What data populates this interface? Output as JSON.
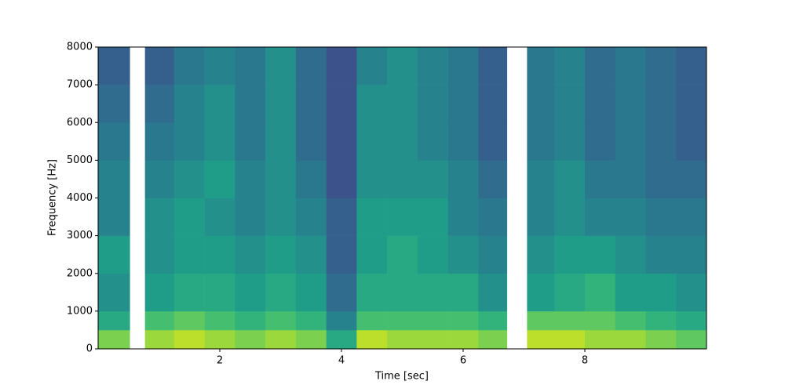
{
  "chart_data": {
    "type": "spectrogram",
    "xlabel": "Time [sec]",
    "ylabel": "Frequency [Hz]",
    "xlim": [
      0,
      10
    ],
    "ylim": [
      0,
      8000
    ],
    "xticks": [
      2,
      4,
      6,
      8
    ],
    "yticks": [
      0,
      1000,
      2000,
      3000,
      4000,
      5000,
      6000,
      7000,
      8000
    ],
    "colormap": "viridis",
    "xbins": [
      0,
      0.52,
      0.77,
      1.25,
      1.75,
      2.25,
      2.75,
      3.25,
      3.75,
      4.25,
      4.75,
      5.25,
      5.75,
      6.25,
      6.72,
      7.05,
      7.5,
      8,
      8.5,
      9,
      9.5,
      10
    ],
    "ybins": [
      0,
      500,
      1000,
      2000,
      3000,
      4000,
      5000,
      6000,
      7000,
      8000
    ],
    "z": [
      [
        0.8,
        0.6,
        0.5,
        0.55,
        0.45,
        0.45,
        0.4,
        0.35,
        0.3
      ],
      null,
      [
        0.85,
        0.7,
        0.55,
        0.5,
        0.5,
        0.45,
        0.4,
        0.35,
        0.3
      ],
      [
        0.9,
        0.75,
        0.6,
        0.55,
        0.55,
        0.5,
        0.45,
        0.45,
        0.4
      ],
      [
        0.85,
        0.7,
        0.6,
        0.55,
        0.5,
        0.55,
        0.5,
        0.5,
        0.45
      ],
      [
        0.8,
        0.65,
        0.55,
        0.5,
        0.45,
        0.45,
        0.4,
        0.4,
        0.4
      ],
      [
        0.85,
        0.7,
        0.6,
        0.55,
        0.5,
        0.5,
        0.5,
        0.5,
        0.5
      ],
      [
        0.8,
        0.65,
        0.55,
        0.5,
        0.45,
        0.4,
        0.35,
        0.35,
        0.35
      ],
      [
        0.6,
        0.45,
        0.35,
        0.3,
        0.3,
        0.25,
        0.25,
        0.25,
        0.25
      ],
      [
        0.9,
        0.7,
        0.6,
        0.55,
        0.55,
        0.5,
        0.5,
        0.5,
        0.45
      ],
      [
        0.85,
        0.7,
        0.6,
        0.6,
        0.55,
        0.5,
        0.5,
        0.5,
        0.5
      ],
      [
        0.85,
        0.7,
        0.6,
        0.55,
        0.55,
        0.5,
        0.45,
        0.45,
        0.45
      ],
      [
        0.85,
        0.7,
        0.6,
        0.5,
        0.45,
        0.45,
        0.4,
        0.4,
        0.4
      ],
      [
        0.8,
        0.65,
        0.5,
        0.45,
        0.4,
        0.35,
        0.3,
        0.3,
        0.3
      ],
      null,
      [
        0.9,
        0.75,
        0.55,
        0.5,
        0.45,
        0.45,
        0.4,
        0.4,
        0.4
      ],
      [
        0.9,
        0.75,
        0.6,
        0.55,
        0.5,
        0.5,
        0.45,
        0.45,
        0.45
      ],
      [
        0.85,
        0.75,
        0.65,
        0.55,
        0.45,
        0.4,
        0.35,
        0.35,
        0.35
      ],
      [
        0.85,
        0.7,
        0.55,
        0.5,
        0.45,
        0.4,
        0.4,
        0.4,
        0.4
      ],
      [
        0.8,
        0.65,
        0.55,
        0.45,
        0.4,
        0.35,
        0.35,
        0.35,
        0.35
      ],
      [
        0.75,
        0.6,
        0.5,
        0.45,
        0.4,
        0.35,
        0.3,
        0.3,
        0.3
      ]
    ]
  }
}
